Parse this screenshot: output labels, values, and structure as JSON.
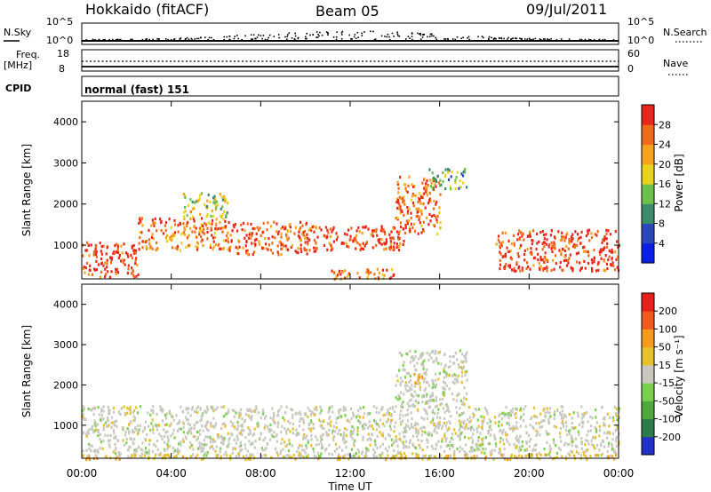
{
  "header": {
    "station": "Hokkaido (fitACF)",
    "beam": "Beam 05",
    "date": "09/Jul/2011"
  },
  "panels": {
    "nsky": {
      "left_label": "N.Sky",
      "left_ticks": [
        "10^5",
        "10^0"
      ],
      "right_ticks": [
        "10^5",
        "10^0"
      ],
      "right_label": "N.Search"
    },
    "freq": {
      "left_label_1": "Freq.",
      "left_label_2": "[MHz]",
      "left_ticks": [
        "18",
        "8"
      ],
      "right_ticks": [
        "60",
        "0"
      ],
      "right_label": "Nave"
    },
    "cpid": {
      "left_label": "CPID",
      "program": "normal (fast) 151"
    }
  },
  "axes": {
    "ylabel": "Slant Range [km]",
    "xlabel": "Time UT",
    "yticks": [
      "4000",
      "3000",
      "2000",
      "1000"
    ],
    "xticks": [
      "00:00",
      "04:00",
      "08:00",
      "12:00",
      "16:00",
      "20:00",
      "00:00"
    ]
  },
  "colorbars": {
    "power": {
      "label": "Power [dB]",
      "ticks": [
        "28",
        "24",
        "20",
        "16",
        "12",
        "8",
        "4"
      ],
      "colors": [
        "#0a1fe6",
        "#2a46b8",
        "#3a8c6a",
        "#6cc04a",
        "#e8d21c",
        "#f5a21c",
        "#f06a1c",
        "#e8261c"
      ]
    },
    "velocity": {
      "label": "Velocity [m s⁻¹]",
      "ticks": [
        "200",
        "100",
        "50",
        "15",
        "-15",
        "-50",
        "-100",
        "-200"
      ],
      "colors": [
        "#2030c8",
        "#2f7a4a",
        "#4fa83c",
        "#7ad04c",
        "#c8c8c0",
        "#e8c02a",
        "#f59a1c",
        "#f05a1c",
        "#e8201c"
      ]
    }
  },
  "chart_data": {
    "type": "heatmap",
    "title": "Hokkaido (fitACF)",
    "xlabel": "Time UT",
    "ylabel": "Slant Range [km]",
    "xlim_hours": [
      0,
      24
    ],
    "ylim_km": [
      180,
      4500
    ],
    "grid": false,
    "series": [
      {
        "name": "Power [dB]",
        "scale": [
          0,
          30
        ],
        "regions": [
          {
            "t": [
              0.0,
              2.5
            ],
            "r": [
              250,
              1100
            ],
            "level": 28
          },
          {
            "t": [
              2.5,
              6.5
            ],
            "r": [
              900,
              1700
            ],
            "level": 24
          },
          {
            "t": [
              4.5,
              6.5
            ],
            "r": [
              1700,
              2300
            ],
            "level": 16
          },
          {
            "t": [
              6.5,
              10.5
            ],
            "r": [
              800,
              1600
            ],
            "level": 26
          },
          {
            "t": [
              10.5,
              14.5
            ],
            "r": [
              900,
              1500
            ],
            "level": 28
          },
          {
            "t": [
              11.0,
              14.0
            ],
            "r": [
              200,
              450
            ],
            "level": 24
          },
          {
            "t": [
              14.0,
              16.0
            ],
            "r": [
              1300,
              2700
            ],
            "level": 24
          },
          {
            "t": [
              15.5,
              17.2
            ],
            "r": [
              2400,
              2900
            ],
            "level": 12
          },
          {
            "t": [
              18.5,
              24.0
            ],
            "r": [
              400,
              1400
            ],
            "level": 28
          }
        ]
      },
      {
        "name": "Velocity [m s⁻¹]",
        "scale": [
          -200,
          200
        ],
        "regions": [
          {
            "t": [
              0.0,
              24.0
            ],
            "r": [
              250,
              1500
            ],
            "level": 0
          },
          {
            "t": [
              14.0,
              17.2
            ],
            "r": [
              1500,
              2900
            ],
            "level": 0
          },
          {
            "t": [
              14.8,
              15.2
            ],
            "r": [
              2000,
              2400
            ],
            "level": -60
          },
          {
            "t": [
              0.0,
              24.0
            ],
            "r": [
              180,
              300
            ],
            "level": -40
          }
        ]
      }
    ]
  }
}
